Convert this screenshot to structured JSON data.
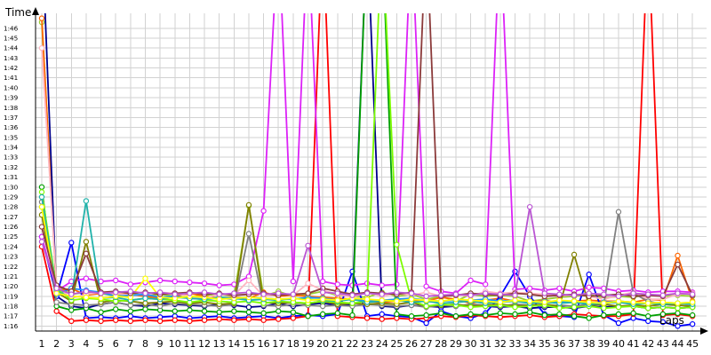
{
  "chart_data": {
    "type": "line",
    "ylabel": "Time",
    "xlabel": "Laps",
    "x": [
      1,
      2,
      3,
      4,
      5,
      6,
      7,
      8,
      9,
      10,
      11,
      12,
      13,
      14,
      15,
      16,
      17,
      18,
      19,
      20,
      21,
      22,
      23,
      24,
      25,
      26,
      27,
      28,
      29,
      30,
      31,
      32,
      33,
      34,
      35,
      36,
      37,
      38,
      39,
      40,
      41,
      42,
      43,
      44,
      45
    ],
    "y_tick_labels": [
      "1:16",
      "1:17",
      "1:18",
      "1:19",
      "1:20",
      "1:21",
      "1:22",
      "1:23",
      "1:24",
      "1:25",
      "1:26",
      "1:27",
      "1:28",
      "1:29",
      "1:30",
      "1:31",
      "1:32",
      "1:33",
      "1:34",
      "1:35",
      "1:36",
      "1:37",
      "1:38",
      "1:39",
      "1:40",
      "1:41",
      "1:42",
      "1:43",
      "1:44",
      "1:45",
      "1:46"
    ],
    "ylim_seconds": [
      75.5,
      107.5
    ],
    "grid": true,
    "series": [
      {
        "color": "#9acd32",
        "values": [
          106.6,
          80.1,
          79.2,
          79.4,
          79.3,
          79.0,
          79.4,
          79.0,
          79.2,
          79.0,
          78.9,
          79.1,
          79.2,
          79.0,
          88.1,
          79.0,
          79.5,
          79.0,
          79.2,
          79.5,
          79.1,
          79.0,
          78.9,
          79.4,
          79.0,
          79.2,
          78.7,
          79.0,
          78.5,
          79.2,
          79.0,
          79.1,
          79.0,
          78.5,
          78.7,
          78.9,
          79.0,
          79.2,
          78.8,
          79.0,
          78.9,
          79.2,
          79.0,
          79.1,
          79.0
        ]
      },
      {
        "color": "#ff6600",
        "values": [
          107.0,
          79.5,
          79.8,
          79.1,
          79.3,
          79.3,
          79.2,
          79.0,
          78.8,
          79.0,
          79.3,
          79.0,
          78.8,
          78.9,
          78.8,
          79.4,
          79.0,
          79.1,
          79.0,
          78.9,
          78.8,
          78.7,
          78.5,
          78.4,
          78.5,
          78.6,
          78.5,
          78.9,
          78.7,
          78.3,
          78.6,
          78.8,
          78.5,
          78.4,
          78.6,
          78.3,
          78.5,
          78.6,
          78.5,
          78.5,
          78.4,
          78.7,
          78.6,
          83.1,
          78.5
        ]
      },
      {
        "color": "#00008b",
        "values": [
          116.0,
          79.0,
          78.0,
          77.8,
          78.2,
          78.4,
          78.1,
          78.0,
          78.3,
          78.2,
          78.1,
          78.0,
          78.2,
          78.1,
          77.9,
          78.0,
          78.3,
          78.0,
          78.2,
          78.3,
          78.1,
          78.2,
          116.0,
          78.0,
          77.9,
          78.1,
          78.0,
          77.9,
          78.0,
          78.1,
          78.0,
          77.9,
          78.0,
          77.8,
          77.9,
          77.9,
          77.8,
          78.0,
          77.9,
          78.0,
          78.0,
          77.8,
          77.9,
          77.8,
          77.9
        ]
      },
      {
        "color": "#0000ff",
        "values": [
          85.0,
          79.0,
          84.4,
          76.8,
          76.9,
          76.8,
          77.0,
          76.8,
          76.9,
          77.0,
          76.8,
          76.9,
          77.0,
          76.8,
          76.9,
          77.0,
          76.8,
          77.0,
          77.1,
          77.0,
          77.2,
          81.5,
          77.0,
          77.2,
          77.0,
          76.9,
          76.3,
          77.5,
          77.0,
          76.8,
          77.3,
          79.0,
          81.5,
          79.0,
          77.2,
          77.0,
          76.9,
          81.2,
          77.1,
          76.3,
          76.8,
          76.5,
          76.4,
          76.0,
          76.2
        ]
      },
      {
        "color": "#ff0000",
        "values": [
          84.0,
          77.5,
          76.5,
          76.6,
          76.5,
          76.6,
          76.5,
          76.6,
          76.5,
          76.6,
          76.5,
          76.6,
          76.7,
          76.6,
          76.7,
          76.6,
          76.7,
          76.8,
          77.0,
          116.0,
          77.0,
          76.9,
          76.8,
          76.7,
          76.8,
          76.7,
          76.8,
          77.0,
          76.9,
          77.1,
          77.0,
          76.9,
          77.0,
          77.1,
          76.9,
          77.0,
          77.2,
          77.1,
          77.0,
          77.0,
          77.2,
          116.0,
          77.1,
          77.2,
          77.0
        ]
      },
      {
        "color": "#dc22f7",
        "values": [
          85.0,
          79.5,
          80.5,
          80.8,
          80.5,
          80.6,
          80.2,
          80.4,
          80.6,
          80.5,
          80.4,
          80.3,
          80.1,
          80.2,
          81.0,
          87.6,
          116.0,
          80.5,
          116.0,
          80.5,
          80.2,
          80.1,
          80.3,
          80.1,
          80.2,
          116.0,
          80.0,
          79.5,
          79.3,
          80.6,
          80.2,
          116.0,
          79.7,
          79.8,
          79.6,
          79.8,
          79.5,
          79.9,
          79.8,
          79.5,
          79.6,
          79.4,
          79.5,
          79.5,
          79.4
        ]
      },
      {
        "color": "#ffb6c1",
        "values": [
          104.0,
          80.0,
          78.8,
          79.2,
          79.4,
          79.3,
          79.1,
          79.2,
          79.4,
          79.3,
          79.0,
          78.8,
          79.2,
          79.1,
          80.6,
          79.0,
          79.2,
          79.1,
          80.3,
          79.6,
          79.2,
          78.9,
          79.4,
          79.0,
          79.3,
          79.1,
          79.4,
          79.0,
          79.2,
          79.0,
          79.5,
          79.3,
          79.4,
          79.3,
          79.2,
          79.0,
          79.2,
          79.0,
          78.7,
          79.1,
          79.4,
          78.7,
          78.7,
          79.2,
          79.3
        ]
      },
      {
        "color": "#1e90ff",
        "values": [
          88.0,
          79.2,
          79.8,
          79.6,
          79.4,
          79.0,
          79.1,
          79.2,
          78.9,
          79.0,
          78.8,
          78.7,
          78.8,
          78.7,
          78.9,
          78.8,
          78.7,
          78.7,
          78.9,
          78.8,
          78.6,
          78.7,
          78.5,
          78.6,
          78.7,
          78.8,
          78.6,
          78.5,
          78.6,
          78.6,
          78.7,
          78.5,
          78.6,
          78.4,
          78.5,
          78.4,
          78.5,
          78.3,
          78.4,
          78.5,
          78.4,
          78.3,
          78.4,
          78.3,
          78.4
        ]
      },
      {
        "color": "#00a000",
        "values": [
          90.0,
          78.0,
          77.6,
          77.8,
          77.4,
          77.7,
          77.5,
          77.7,
          77.6,
          77.5,
          77.6,
          77.5,
          77.4,
          77.5,
          77.4,
          77.3,
          77.5,
          77.4,
          77.0,
          77.2,
          77.3,
          77.1,
          116.0,
          116.0,
          77.2,
          77.0,
          77.1,
          77.3,
          77.0,
          77.2,
          77.1,
          77.3,
          77.2,
          77.4,
          77.1,
          77.2,
          77.0,
          76.8,
          77.1,
          77.2,
          77.3,
          77.0,
          77.2,
          77.3,
          77.1
        ]
      },
      {
        "color": "#808080",
        "values": [
          88.5,
          78.4,
          78.2,
          78.1,
          78.2,
          78.4,
          78.1,
          78.2,
          78.0,
          78.3,
          78.2,
          78.1,
          78.0,
          78.2,
          85.3,
          78.1,
          78.0,
          78.2,
          78.1,
          78.0,
          78.1,
          78.0,
          78.2,
          78.1,
          78.0,
          78.1,
          77.9,
          78.1,
          78.0,
          78.2,
          78.1,
          78.0,
          78.2,
          78.1,
          78.0,
          78.1,
          78.0,
          78.2,
          78.1,
          87.5,
          79.3,
          78.5,
          78.2,
          78.1,
          78.0
        ]
      },
      {
        "color": "#808000",
        "values": [
          87.2,
          79.4,
          78.5,
          84.5,
          78.4,
          78.6,
          78.5,
          78.3,
          78.4,
          78.5,
          78.3,
          78.4,
          78.2,
          78.3,
          88.2,
          78.4,
          78.3,
          78.4,
          78.3,
          78.5,
          78.2,
          78.3,
          78.2,
          78.3,
          78.2,
          78.4,
          78.0,
          78.1,
          78.2,
          78.0,
          78.1,
          78.2,
          78.0,
          78.1,
          78.2,
          78.0,
          83.2,
          78.1,
          78.2,
          78.0,
          78.1,
          78.0,
          78.2,
          78.1,
          78.0
        ]
      },
      {
        "color": "#7cfc00",
        "values": [
          89.5,
          79.8,
          78.6,
          78.8,
          78.7,
          78.5,
          78.6,
          78.8,
          78.7,
          78.6,
          78.4,
          78.6,
          78.5,
          78.4,
          78.5,
          78.3,
          78.5,
          78.4,
          78.3,
          78.5,
          78.4,
          78.3,
          78.5,
          116.0,
          84.2,
          78.6,
          78.0,
          78.2,
          78.1,
          77.9,
          78.0,
          78.1,
          77.9,
          78.0,
          78.1,
          77.8,
          77.9,
          78.0,
          77.8,
          77.9,
          78.0,
          77.8,
          77.9,
          77.8,
          77.9
        ]
      },
      {
        "color": "#20b2aa",
        "values": [
          89.0,
          79.5,
          78.9,
          88.6,
          78.8,
          78.9,
          78.6,
          78.8,
          78.7,
          78.9,
          78.8,
          78.7,
          78.9,
          78.8,
          78.6,
          78.7,
          78.6,
          78.8,
          78.7,
          78.6,
          78.5,
          78.7,
          78.4,
          78.5,
          78.6,
          78.4,
          78.5,
          78.3,
          78.4,
          78.5,
          78.3,
          78.4,
          78.5,
          78.3,
          78.4,
          78.3,
          78.4,
          78.2,
          78.3,
          78.4,
          78.2,
          78.3,
          78.2,
          78.3,
          78.2
        ]
      },
      {
        "color": "#ffff00",
        "values": [
          88.0,
          79.3,
          79.0,
          78.9,
          78.8,
          79.0,
          78.9,
          80.8,
          78.9,
          78.8,
          79.0,
          78.9,
          78.7,
          78.8,
          78.9,
          78.8,
          78.7,
          78.8,
          78.6,
          78.7,
          78.6,
          78.8,
          78.7,
          78.6,
          78.5,
          78.7,
          78.6,
          78.5,
          78.7,
          78.6,
          78.5,
          78.4,
          78.6,
          78.5,
          78.4,
          78.6,
          78.5,
          78.4,
          78.3,
          78.5,
          78.4,
          78.3,
          78.4,
          78.3,
          78.4
        ]
      },
      {
        "color": "#8b3a3a",
        "values": [
          86.0,
          80.1,
          79.5,
          83.3,
          79.4,
          79.5,
          79.3,
          79.4,
          79.2,
          79.3,
          79.4,
          79.2,
          79.3,
          79.1,
          79.2,
          79.3,
          79.1,
          79.2,
          79.3,
          79.8,
          79.5,
          79.2,
          79.4,
          79.3,
          79.2,
          79.4,
          116.0,
          79.0,
          79.1,
          79.3,
          79.2,
          79.1,
          79.3,
          79.2,
          79.0,
          79.1,
          79.2,
          79.0,
          79.1,
          79.2,
          79.0,
          79.1,
          79.0,
          82.2,
          79.1
        ]
      },
      {
        "color": "#ba55d3",
        "values": [
          84.5,
          79.8,
          79.2,
          79.5,
          79.3,
          79.4,
          79.5,
          79.3,
          79.4,
          79.2,
          79.3,
          79.4,
          79.2,
          79.3,
          79.4,
          79.2,
          79.3,
          79.2,
          84.1,
          79.4,
          79.3,
          79.1,
          79.3,
          79.2,
          79.4,
          79.3,
          79.0,
          79.1,
          79.2,
          79.1,
          79.3,
          79.2,
          79.1,
          88.0,
          79.3,
          79.2,
          79.1,
          79.3,
          79.2,
          79.0,
          79.3,
          79.2,
          79.1,
          79.3,
          79.2
        ]
      }
    ]
  }
}
